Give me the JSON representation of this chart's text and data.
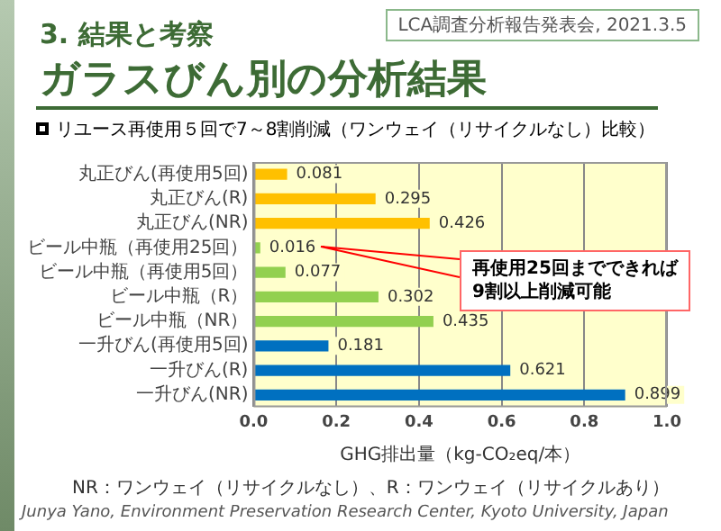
{
  "chart_data": {
    "type": "bar",
    "orientation": "horizontal",
    "title": "ガラスびん別の分析結果",
    "subtitle": "リユース再使用５回で7～8割削減（ワンウェイ（リサイクルなし）比較）",
    "categories": [
      "丸正びん(再使用5回)",
      "丸正びん(R)",
      "丸正びん(NR)",
      "ビール中瓶（再使用25回）",
      "ビール中瓶（再使用5回）",
      "ビール中瓶（R）",
      "ビール中瓶（NR）",
      "一升びん(再使用5回)",
      "一升びん(R)",
      "一升びん(NR)"
    ],
    "values": [
      0.081,
      0.295,
      0.426,
      0.016,
      0.077,
      0.302,
      0.435,
      0.181,
      0.621,
      0.899
    ],
    "colors": [
      "#ffc000",
      "#ffc000",
      "#ffc000",
      "#92d050",
      "#92d050",
      "#92d050",
      "#92d050",
      "#0070c0",
      "#0070c0",
      "#0070c0"
    ],
    "xlim": [
      0,
      1
    ],
    "xticks": [
      {
        "value": 0,
        "label": "0.0"
      },
      {
        "value": 0.2,
        "label": "0.2"
      },
      {
        "value": 0.4,
        "label": "0.4"
      },
      {
        "value": 0.6,
        "label": "0.6"
      },
      {
        "value": 0.8,
        "label": "0.8"
      },
      {
        "value": 1,
        "label": "1.0"
      }
    ],
    "xlabel": "GHG排出量（kg-CO₂eq/本）",
    "grid": "x",
    "legend": false,
    "data_labels": true,
    "annotations": [
      "LCA調査分析報告発表会, 2021.3.5",
      "3. 結果と考察",
      "再使用25回までできれば\n9割以上削減可能",
      "NR：ワンウェイ（リサイクルなし）、R：ワンウェイ（リサイクルあり）",
      "Junya Yano, Environment Preservation Research Center, Kyoto University, Japan"
    ]
  }
}
